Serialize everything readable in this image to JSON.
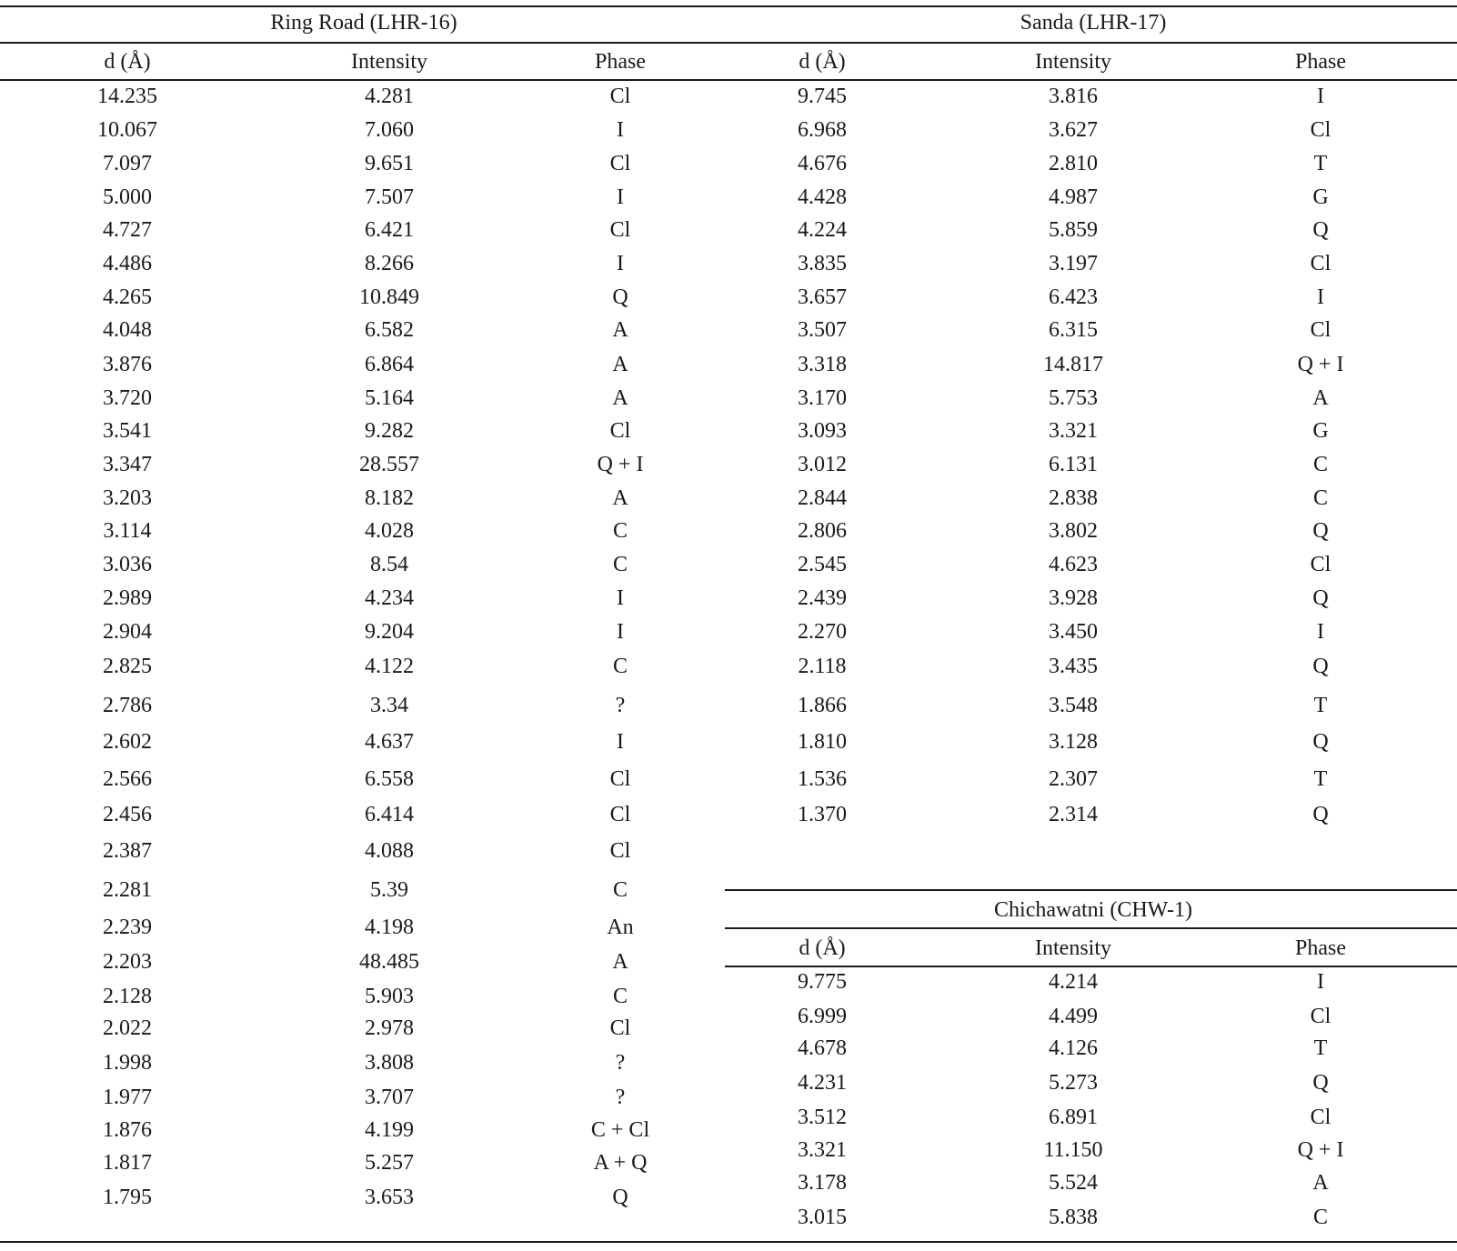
{
  "left_block": {
    "title": "Ring Road (LHR-16)",
    "columns": [
      "d (Å)",
      "Intensity",
      "Phase"
    ],
    "rows": [
      [
        "14.235",
        "4.281",
        "Cl"
      ],
      [
        "10.067",
        "7.060",
        "I"
      ],
      [
        "7.097",
        "9.651",
        "Cl"
      ],
      [
        "5.000",
        "7.507",
        "I"
      ],
      [
        "4.727",
        "6.421",
        "Cl"
      ],
      [
        "4.486",
        "8.266",
        "I"
      ],
      [
        "4.265",
        "10.849",
        "Q"
      ],
      [
        "4.048",
        "6.582",
        "A"
      ],
      [
        "3.876",
        "6.864",
        "A"
      ],
      [
        "3.720",
        "5.164",
        "A"
      ],
      [
        "3.541",
        "9.282",
        "Cl"
      ],
      [
        "3.347",
        "28.557",
        "Q + I"
      ],
      [
        "3.203",
        "8.182",
        "A"
      ],
      [
        "3.114",
        "4.028",
        "C"
      ],
      [
        "3.036",
        "8.54",
        "C"
      ],
      [
        "2.989",
        "4.234",
        "I"
      ],
      [
        "2.904",
        "9.204",
        "I"
      ],
      [
        "2.825",
        "4.122",
        "C"
      ],
      [
        "2.786",
        "3.34",
        "?"
      ],
      [
        "2.602",
        "4.637",
        "I"
      ],
      [
        "2.566",
        "6.558",
        "Cl"
      ],
      [
        "2.456",
        "6.414",
        "Cl"
      ],
      [
        "2.387",
        "4.088",
        "Cl"
      ],
      [
        "2.281",
        "5.39",
        "C"
      ],
      [
        "2.239",
        "4.198",
        "An"
      ],
      [
        "2.203",
        "48.485",
        "A"
      ],
      [
        "2.128",
        "5.903",
        "C"
      ],
      [
        "2.022",
        "2.978",
        "Cl"
      ],
      [
        "1.998",
        "3.808",
        "?"
      ],
      [
        "1.977",
        "3.707",
        "?"
      ],
      [
        "1.876",
        "4.199",
        "C + Cl"
      ],
      [
        "1.817",
        "5.257",
        "A + Q"
      ],
      [
        "1.795",
        "3.653",
        "Q"
      ]
    ]
  },
  "top_right_block": {
    "title": "Sanda (LHR-17)",
    "columns": [
      "d (Å)",
      "Intensity",
      "Phase"
    ],
    "rows": [
      [
        "9.745",
        "3.816",
        "I"
      ],
      [
        "6.968",
        "3.627",
        "Cl"
      ],
      [
        "4.676",
        "2.810",
        "T"
      ],
      [
        "4.428",
        "4.987",
        "G"
      ],
      [
        "4.224",
        "5.859",
        "Q"
      ],
      [
        "3.835",
        "3.197",
        "Cl"
      ],
      [
        "3.657",
        "6.423",
        "I"
      ],
      [
        "3.507",
        "6.315",
        "Cl"
      ],
      [
        "3.318",
        "14.817",
        "Q + I"
      ],
      [
        "3.170",
        "5.753",
        "A"
      ],
      [
        "3.093",
        "3.321",
        "G"
      ],
      [
        "3.012",
        "6.131",
        "C"
      ],
      [
        "2.844",
        "2.838",
        "C"
      ],
      [
        "2.806",
        "3.802",
        "Q"
      ],
      [
        "2.545",
        "4.623",
        "Cl"
      ],
      [
        "2.439",
        "3.928",
        "Q"
      ],
      [
        "2.270",
        "3.450",
        "I"
      ],
      [
        "2.118",
        "3.435",
        "Q"
      ],
      [
        "1.866",
        "3.548",
        "T"
      ],
      [
        "1.810",
        "3.128",
        "Q"
      ],
      [
        "1.536",
        "2.307",
        "T"
      ],
      [
        "1.370",
        "2.314",
        "Q"
      ]
    ]
  },
  "bottom_right_block": {
    "title": "Chichawatni (CHW-1)",
    "columns": [
      "d (Å)",
      "Intensity",
      "Phase"
    ],
    "rows": [
      [
        "9.775",
        "4.214",
        "I"
      ],
      [
        "6.999",
        "4.499",
        "Cl"
      ],
      [
        "4.678",
        "4.126",
        "T"
      ],
      [
        "4.231",
        "5.273",
        "Q"
      ],
      [
        "3.512",
        "6.891",
        "Cl"
      ],
      [
        "3.321",
        "11.150",
        "Q + I"
      ],
      [
        "3.178",
        "5.524",
        "A"
      ],
      [
        "3.015",
        "5.838",
        "C"
      ]
    ]
  }
}
